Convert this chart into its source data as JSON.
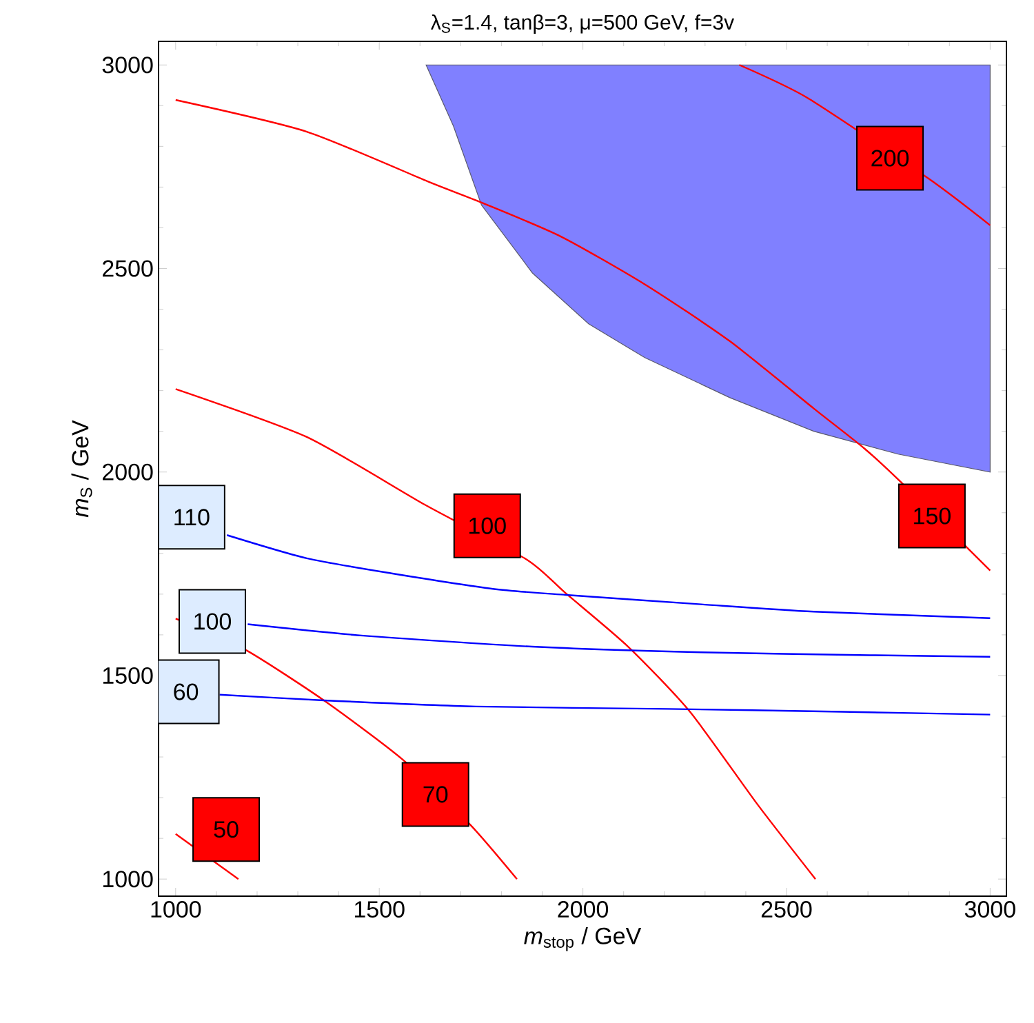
{
  "chart_data": {
    "type": "line",
    "title": "λ$_{S}$=1.4, tanβ=3, μ=500 GeV, f=3v",
    "xlabel": "*m*$_{stop}$ / GeV",
    "ylabel": "*m*$_{S}$ / GeV",
    "xlim": [
      958,
      3040
    ],
    "ylim": [
      958,
      3058
    ],
    "xticks": [
      1000,
      1500,
      2000,
      2500,
      3000
    ],
    "yticks": [
      1000,
      1500,
      2000,
      2500,
      3000
    ],
    "grid": false,
    "series": [
      {
        "type": "area",
        "color": "#8080ff",
        "x": [
          1615,
          1682,
          1751,
          1876,
          2014,
          2152,
          2360,
          2567,
          2774,
          3000,
          3000
        ],
        "values": [
          3000,
          2850,
          2656,
          2489,
          2364,
          2281,
          2183,
          2100,
          2044,
          2000,
          3000
        ]
      },
      {
        "name": "200",
        "color": "#ff0000",
        "x": [
          2384,
          2550,
          2850,
          3000
        ],
        "values": [
          3000,
          2920,
          2720,
          2606
        ]
      },
      {
        "name": "150",
        "color": "#ff0000",
        "x": [
          1000,
          1322,
          1626,
          1751,
          1945,
          2152,
          2360,
          2567,
          2691,
          2781,
          3000
        ],
        "values": [
          2914,
          2836,
          2711,
          2662,
          2579,
          2461,
          2322,
          2156,
          2058,
          1975,
          1758
        ]
      },
      {
        "name": "100",
        "color": "#ff0000",
        "x": [
          1000,
          1322,
          1613,
          1862,
          1958,
          2111,
          2263,
          2429,
          2571
        ],
        "values": [
          2204,
          2086,
          1919,
          1785,
          1702,
          1571,
          1411,
          1183,
          1000
        ]
      },
      {
        "name": "70",
        "color": "#ff0000",
        "x": [
          1000,
          1170,
          1364,
          1557,
          1723,
          1838
        ],
        "values": [
          1640,
          1564,
          1439,
          1294,
          1134,
          1000
        ]
      },
      {
        "name": "50",
        "color": "#ff0000",
        "x": [
          1000,
          1154
        ],
        "values": [
          1111,
          1000
        ]
      },
      {
        "name": "110",
        "color": "#0000ff",
        "x": [
          1126,
          1322,
          1530,
          1779,
          1958,
          2290,
          2567,
          3000
        ],
        "values": [
          1845,
          1788,
          1751,
          1713,
          1698,
          1675,
          1657,
          1641
        ]
      },
      {
        "name": "100",
        "color": "#0000ff",
        "x": [
          1177,
          1461,
          1875,
          2290,
          2705,
          3000
        ],
        "values": [
          1626,
          1598,
          1571,
          1557,
          1550,
          1546
        ]
      },
      {
        "name": "60",
        "color": "#0000ff",
        "x": [
          1108,
          1364,
          1737,
          2207,
          2636,
          3000
        ],
        "values": [
          1453,
          1439,
          1424,
          1418,
          1411,
          1404
        ]
      }
    ]
  }
}
